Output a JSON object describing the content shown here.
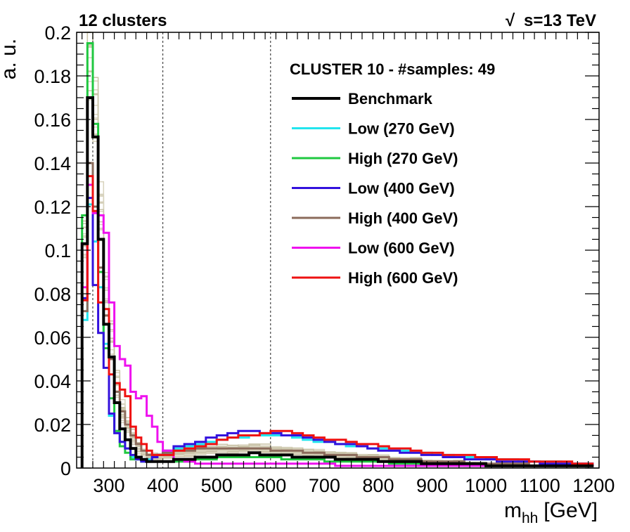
{
  "chart_data": {
    "type": "histogram-step",
    "title": "12 clusters",
    "energy_label": "s=13 TeV",
    "energy_root_symbol": "√",
    "xlabel_main": "m",
    "xlabel_sub": "hh",
    "xlabel_unit": "[GeV]",
    "ylabel": "a. u.",
    "xlim": [
      240,
      1210
    ],
    "ylim": [
      0,
      0.2
    ],
    "x_ticks": [
      "300",
      "400",
      "500",
      "600",
      "700",
      "800",
      "900",
      "1000",
      "1100",
      "1200"
    ],
    "y_ticks": [
      "0",
      "0.02",
      "0.04",
      "0.06",
      "0.08",
      "0.1",
      "0.12",
      "0.14",
      "0.16",
      "0.18",
      "0.2"
    ],
    "vertical_dashed_lines": [
      270,
      400,
      600
    ],
    "legend_title": "CLUSTER 10 - #samples: 49",
    "bins": [
      250,
      260,
      270,
      280,
      290,
      300,
      310,
      320,
      330,
      340,
      350,
      360,
      370,
      380,
      390,
      400,
      420,
      440,
      460,
      480,
      500,
      520,
      540,
      560,
      580,
      600,
      620,
      640,
      660,
      680,
      700,
      720,
      740,
      760,
      780,
      800,
      820,
      840,
      860,
      880,
      900,
      920,
      940,
      960,
      980,
      1000,
      1020,
      1040,
      1060,
      1080,
      1100,
      1120,
      1140,
      1160,
      1180,
      1200
    ],
    "series": [
      {
        "name": "Benchmark",
        "color": "#000000",
        "width": 4,
        "values": [
          0.103,
          0.17,
          0.152,
          0.105,
          0.066,
          0.051,
          0.03,
          0.018,
          0.013,
          0.009,
          0.005,
          0.004,
          0.003,
          0.003,
          0.003,
          0.003,
          0.004,
          0.004,
          0.005,
          0.005,
          0.006,
          0.006,
          0.006,
          0.007,
          0.006,
          0.006,
          0.006,
          0.005,
          0.005,
          0.005,
          0.005,
          0.004,
          0.004,
          0.004,
          0.004,
          0.003,
          0.003,
          0.003,
          0.003,
          0.002,
          0.002,
          0.002,
          0.002,
          0.002,
          0.002,
          0.001,
          0.001,
          0.001,
          0.001,
          0.001,
          0.001,
          0.001,
          0.001,
          0.001,
          0.001
        ]
      },
      {
        "name": "Low (270 GeV)",
        "color": "#22e5ee",
        "width": 3,
        "values": [
          0.068,
          0.121,
          0.104,
          0.083,
          0.057,
          0.024,
          0.017,
          0.012,
          0.009,
          0.005,
          0.004,
          0.003,
          0.004,
          0.005,
          0.006,
          0.007,
          0.009,
          0.01,
          0.011,
          0.012,
          0.013,
          0.014,
          0.014,
          0.015,
          0.015,
          0.015,
          0.015,
          0.014,
          0.013,
          0.012,
          0.012,
          0.011,
          0.01,
          0.01,
          0.009,
          0.009,
          0.008,
          0.008,
          0.007,
          0.007,
          0.006,
          0.006,
          0.005,
          0.005,
          0.005,
          0.004,
          0.004,
          0.004,
          0.003,
          0.003,
          0.003,
          0.003,
          0.002,
          0.002,
          0.002
        ]
      },
      {
        "name": "High (270 GeV)",
        "color": "#20c840",
        "width": 3,
        "values": [
          0.116,
          0.195,
          0.158,
          0.09,
          0.055,
          0.032,
          0.017,
          0.01,
          0.007,
          0.004,
          0.004,
          0.003,
          0.003,
          0.003,
          0.003,
          0.003,
          0.003,
          0.003,
          0.004,
          0.004,
          0.005,
          0.005,
          0.005,
          0.005,
          0.005,
          0.005,
          0.004,
          0.004,
          0.004,
          0.004,
          0.003,
          0.003,
          0.003,
          0.003,
          0.003,
          0.003,
          0.002,
          0.002,
          0.002,
          0.002,
          0.002,
          0.002,
          0.002,
          0.001,
          0.001,
          0.001,
          0.001,
          0.001,
          0.001,
          0.001,
          0.001,
          0.001,
          0.001,
          0.001,
          0.001
        ]
      },
      {
        "name": "Low (400 GeV)",
        "color": "#3311dd",
        "width": 3,
        "values": [
          0.078,
          0.124,
          0.084,
          0.062,
          0.046,
          0.025,
          0.016,
          0.012,
          0.009,
          0.006,
          0.004,
          0.003,
          0.003,
          0.005,
          0.006,
          0.008,
          0.01,
          0.011,
          0.012,
          0.014,
          0.015,
          0.016,
          0.017,
          0.017,
          0.016,
          0.016,
          0.015,
          0.015,
          0.014,
          0.013,
          0.012,
          0.011,
          0.011,
          0.01,
          0.009,
          0.008,
          0.008,
          0.007,
          0.007,
          0.006,
          0.006,
          0.005,
          0.005,
          0.004,
          0.004,
          0.004,
          0.003,
          0.003,
          0.003,
          0.003,
          0.002,
          0.002,
          0.002,
          0.002,
          0.002
        ]
      },
      {
        "name": "High (400 GeV)",
        "color": "#8b6b5b",
        "width": 3,
        "values": [
          0.072,
          0.14,
          0.12,
          0.092,
          0.07,
          0.05,
          0.035,
          0.026,
          0.02,
          0.015,
          0.011,
          0.008,
          0.006,
          0.006,
          0.006,
          0.007,
          0.008,
          0.008,
          0.009,
          0.009,
          0.009,
          0.009,
          0.009,
          0.009,
          0.009,
          0.008,
          0.008,
          0.008,
          0.007,
          0.007,
          0.006,
          0.006,
          0.006,
          0.005,
          0.005,
          0.005,
          0.004,
          0.004,
          0.004,
          0.003,
          0.003,
          0.003,
          0.003,
          0.002,
          0.002,
          0.002,
          0.002,
          0.002,
          0.002,
          0.001,
          0.001,
          0.001,
          0.001,
          0.001,
          0.001
        ]
      },
      {
        "name": "Low (600 GeV)",
        "color": "#ee11ee",
        "width": 3,
        "values": [
          0.083,
          0.13,
          0.117,
          0.116,
          0.108,
          0.076,
          0.056,
          0.05,
          0.047,
          0.035,
          0.032,
          0.033,
          0.024,
          0.019,
          0.012,
          0.008,
          0.004,
          0.003,
          0.002,
          0.002,
          0.002,
          0.002,
          0.002,
          0.002,
          0.002,
          0.002,
          0.002,
          0.002,
          0.002,
          0.002,
          0.002,
          0.001,
          0.001,
          0.001,
          0.001,
          0.001,
          0.001,
          0.001,
          0.001,
          0.001,
          0.001,
          0.001,
          0.001,
          0.001,
          0.001,
          0.001,
          0.001,
          0.001,
          0.001,
          0.001,
          0.001,
          0.001,
          0.001,
          0.001,
          0.001
        ]
      },
      {
        "name": "High (600 GeV)",
        "color": "#ee1111",
        "width": 3,
        "values": [
          0.077,
          0.134,
          0.118,
          0.076,
          0.073,
          0.043,
          0.039,
          0.036,
          0.033,
          0.019,
          0.014,
          0.011,
          0.008,
          0.006,
          0.006,
          0.006,
          0.008,
          0.009,
          0.01,
          0.011,
          0.013,
          0.014,
          0.015,
          0.015,
          0.016,
          0.017,
          0.017,
          0.016,
          0.015,
          0.014,
          0.013,
          0.013,
          0.012,
          0.011,
          0.011,
          0.01,
          0.009,
          0.009,
          0.008,
          0.007,
          0.007,
          0.006,
          0.006,
          0.006,
          0.005,
          0.005,
          0.004,
          0.004,
          0.004,
          0.003,
          0.003,
          0.003,
          0.003,
          0.002,
          0.002
        ]
      }
    ]
  }
}
